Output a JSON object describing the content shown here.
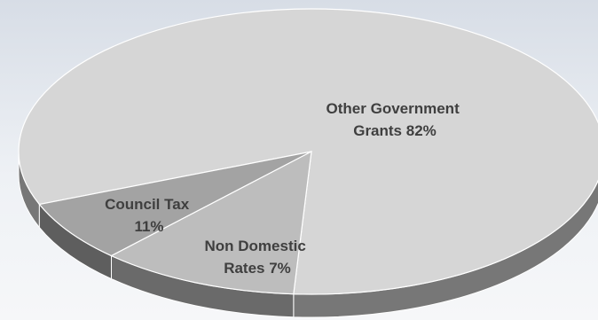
{
  "chart_data": {
    "type": "pie",
    "title": "",
    "slices": [
      {
        "label": "Other Government Grants",
        "value": 82,
        "value_label": "82%",
        "color": "#d6d6d6",
        "side_color": "#777777"
      },
      {
        "label": "Non Domestic Rates",
        "value": 7,
        "value_label": "7%",
        "color": "#a3a3a3",
        "side_color": "#5e5e5e"
      },
      {
        "label": "Council Tax",
        "value": 11,
        "value_label": "11%",
        "color": "#bdbdbd",
        "side_color": "#6a6a6a"
      }
    ],
    "labels": [
      {
        "lines": [
          "Other Government",
          "Grants 82%"
        ]
      },
      {
        "lines": [
          "Non Domestic",
          "Rates 7%"
        ]
      },
      {
        "lines": [
          "Council Tax",
          "11%"
        ]
      }
    ],
    "style": "3d-tilted"
  }
}
